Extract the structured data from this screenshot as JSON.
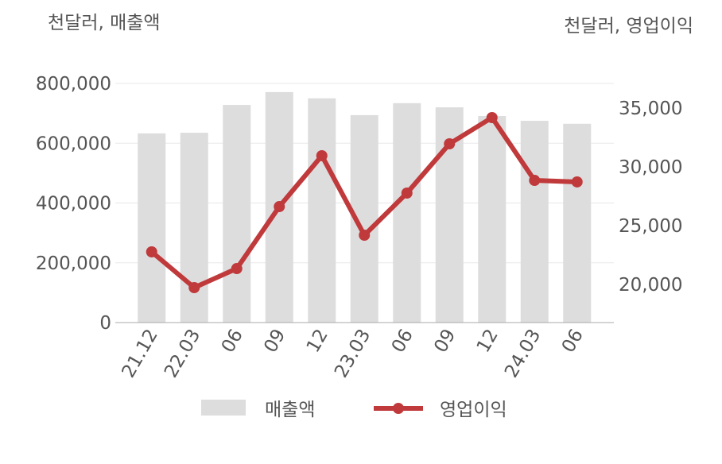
{
  "chart_data": {
    "type": "bar-line",
    "left_axis_label": "천달러, 매출액",
    "right_axis_label": "천달러, 영업이익",
    "categories": [
      "21.12",
      "22.03",
      "06",
      "09",
      "12",
      "23.03",
      "06",
      "09",
      "12",
      "24.03",
      "06"
    ],
    "series": [
      {
        "name": "매출액",
        "type": "bar",
        "color": "#dddddd",
        "values": [
          633000,
          635000,
          728000,
          771000,
          750000,
          694000,
          734000,
          720000,
          691000,
          675000,
          665000
        ]
      },
      {
        "name": "영업이익",
        "type": "line",
        "axis": "y2",
        "color": "#c0393b",
        "values": [
          22770,
          19730,
          21350,
          26620,
          30950,
          24190,
          27770,
          31960,
          34190,
          28850,
          28720
        ]
      }
    ],
    "ylim": [
      0,
      800000
    ],
    "yticks": [
      0,
      {
        "value": 200000,
        "label": "200,000"
      },
      {
        "value": 400000,
        "label": "400,000"
      },
      {
        "value": 600000,
        "label": "600,000"
      },
      {
        "value": 800000,
        "label": "800,000"
      }
    ],
    "y2lim": [
      16757,
      37095
    ],
    "y2ticks": [
      {
        "value": 20000,
        "label": "20,000"
      },
      {
        "value": 25000,
        "label": "25,000"
      },
      {
        "value": 30000,
        "label": "30,000"
      },
      {
        "value": 35000,
        "label": "35,000"
      }
    ],
    "grid": true
  }
}
